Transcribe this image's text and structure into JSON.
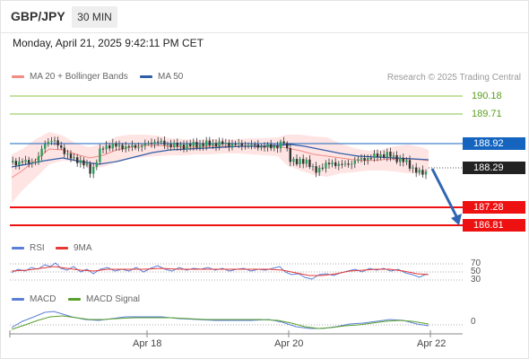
{
  "header": {
    "symbol": "GBP/JPY",
    "timeframe_tab": "30 MIN"
  },
  "timestamp": "Monday, April 21, 2025 9:42:11 PM CET",
  "legend": {
    "ma20_bb": {
      "label": "MA 20 + Bollinger Bands",
      "color": "#f28b82"
    },
    "ma50": {
      "label": "MA 50",
      "color": "#2f5ea8"
    }
  },
  "copyright": "Research © 2025 Trading Central",
  "price_levels": {
    "r2": {
      "value": "190.18",
      "color": "#5a9e1f"
    },
    "r1": {
      "value": "189.71",
      "color": "#5a9e1f"
    },
    "pivot": {
      "value": "188.92",
      "color": "#1565c0"
    },
    "last": {
      "value": "188.29",
      "color": "#222222"
    },
    "s1": {
      "value": "187.28",
      "color": "#ee1111"
    },
    "s2": {
      "value": "186.81",
      "color": "#ee1111"
    }
  },
  "rsi": {
    "legend_rsi": {
      "label": "RSI",
      "color": "#5b7fd6"
    },
    "legend_ma": {
      "label": "9MA",
      "color": "#e53935"
    },
    "levels": [
      "70",
      "50",
      "30"
    ]
  },
  "macd": {
    "legend_macd": {
      "label": "MACD",
      "color": "#5b7fd6"
    },
    "legend_signal": {
      "label": "MACD Signal",
      "color": "#5aa02c"
    },
    "zero_label": "0"
  },
  "x_axis": {
    "labels": [
      "Apr 18",
      "Apr 20",
      "Apr 22"
    ]
  }
}
